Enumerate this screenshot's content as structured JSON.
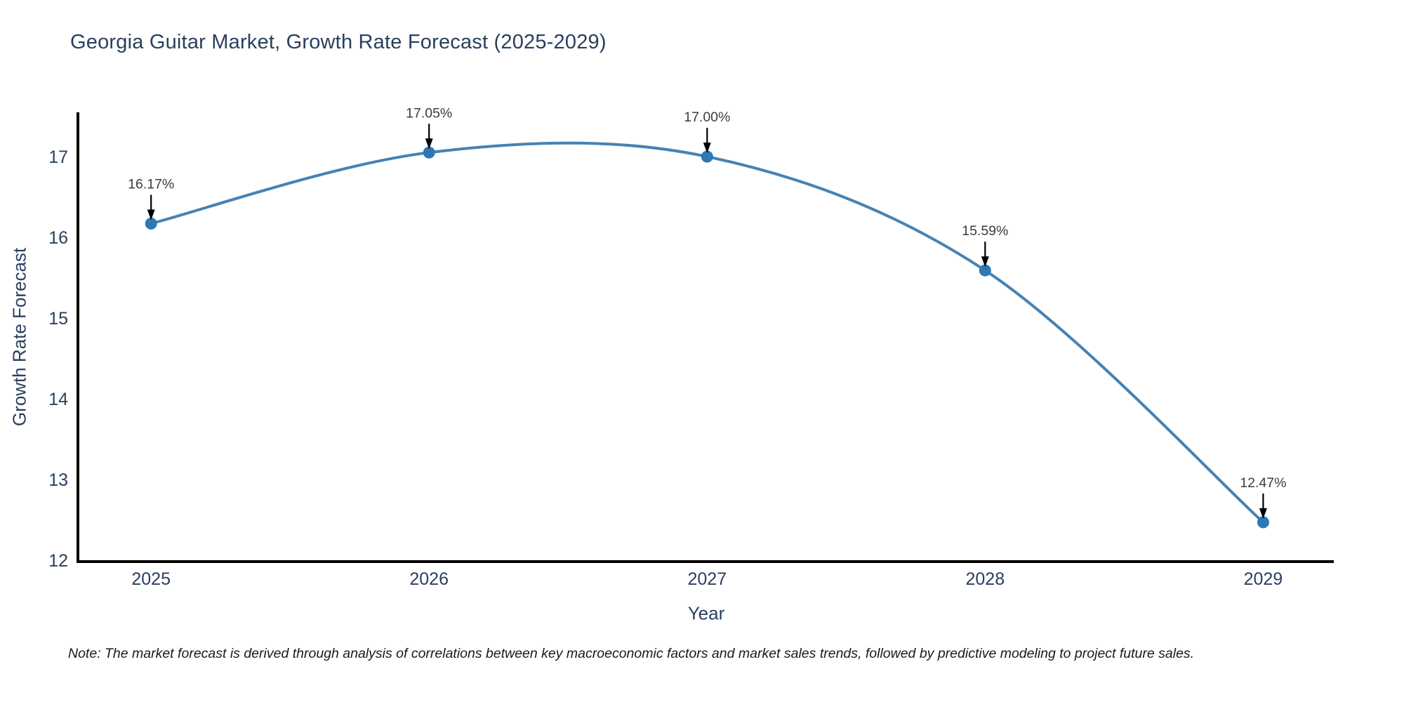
{
  "title": "Georgia Guitar Market, Growth Rate Forecast (2025-2029)",
  "note": "Note: The market forecast is derived through analysis of correlations between key macroeconomic factors and market sales trends, followed by predictive modeling to project future sales.",
  "chart_data": {
    "type": "line",
    "title": "Georgia Guitar Market, Growth Rate Forecast (2025-2029)",
    "xlabel": "Year",
    "ylabel": "Growth Rate Forecast",
    "x": [
      2025,
      2026,
      2027,
      2028,
      2029
    ],
    "series": [
      {
        "name": "Growth Rate Forecast",
        "values": [
          16.17,
          17.05,
          17.0,
          15.59,
          12.47
        ]
      }
    ],
    "point_labels": [
      "16.17%",
      "17.05%",
      "17.00%",
      "15.59%",
      "12.47%"
    ],
    "xticks": [
      "2025",
      "2026",
      "2027",
      "2028",
      "2029"
    ],
    "yticks": [
      12,
      13,
      14,
      15,
      16,
      17
    ],
    "xlim": [
      2024.737,
      2029.254
    ],
    "ylim": [
      12,
      17.54
    ],
    "line_shape": "spline",
    "grid": false,
    "legend_position": "none",
    "annotation_arrows": true,
    "colors": {
      "line": "#4682b4",
      "marker": "#2d78b5",
      "axis": "#000000",
      "text": "#2a3f5f",
      "annotation_text": "#3c3c3c",
      "arrow": "#000000",
      "background": "#ffffff"
    }
  }
}
